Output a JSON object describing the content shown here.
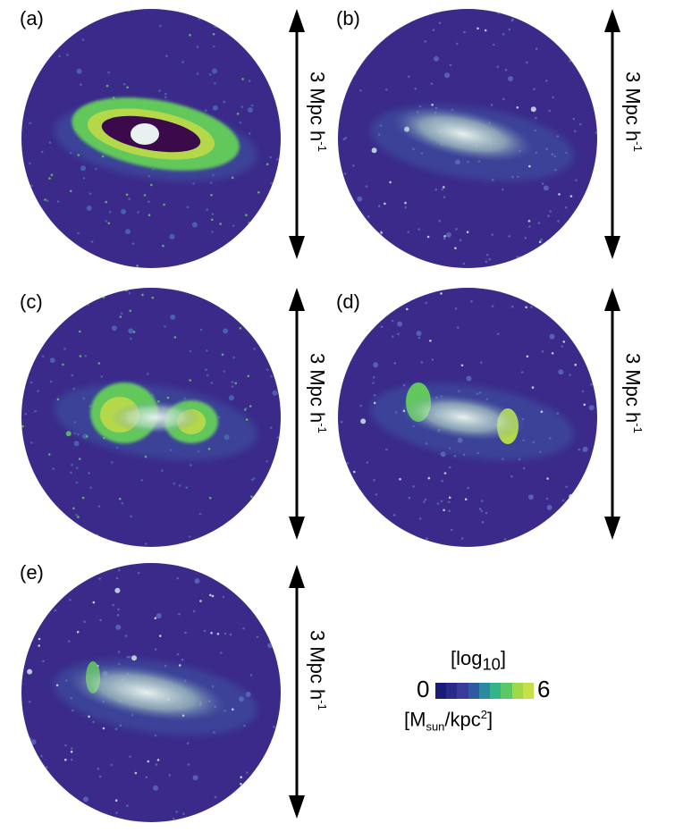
{
  "panels": [
    {
      "label": "(a)",
      "scale": "3 Mpc h",
      "scale_sup": "-1",
      "style": "a"
    },
    {
      "label": "(b)",
      "scale": "3 Mpc h",
      "scale_sup": "-1",
      "style": "b"
    },
    {
      "label": "(c)",
      "scale": "3 Mpc h",
      "scale_sup": "-1",
      "style": "c"
    },
    {
      "label": "(d)",
      "scale": "3 Mpc h",
      "scale_sup": "-1",
      "style": "d"
    },
    {
      "label": "(e)",
      "scale": "3 Mpc h",
      "scale_sup": "-1",
      "style": "e"
    }
  ],
  "colorbar": {
    "title_pre": "[log",
    "title_sub": "10",
    "title_post": "]",
    "min": "0",
    "max": "6",
    "unit_pre": "[M",
    "unit_sub": "sun",
    "unit_mid": "/kpc",
    "unit_sup": "2",
    "unit_post": "]",
    "colors": [
      "#1a1a78",
      "#2a2a8a",
      "#3a3a9a",
      "#2e5aa0",
      "#2b8aa0",
      "#34b48a",
      "#5ac864",
      "#a0d848",
      "#c8e048"
    ]
  },
  "colors": {
    "background": "#3b2a8a",
    "filament": "#3c4e9e",
    "halo_green": "#62c85c",
    "halo_yellow": "#b4d84a",
    "void_dark": "#3a0a4a",
    "core_white": "#e8f0f0"
  }
}
